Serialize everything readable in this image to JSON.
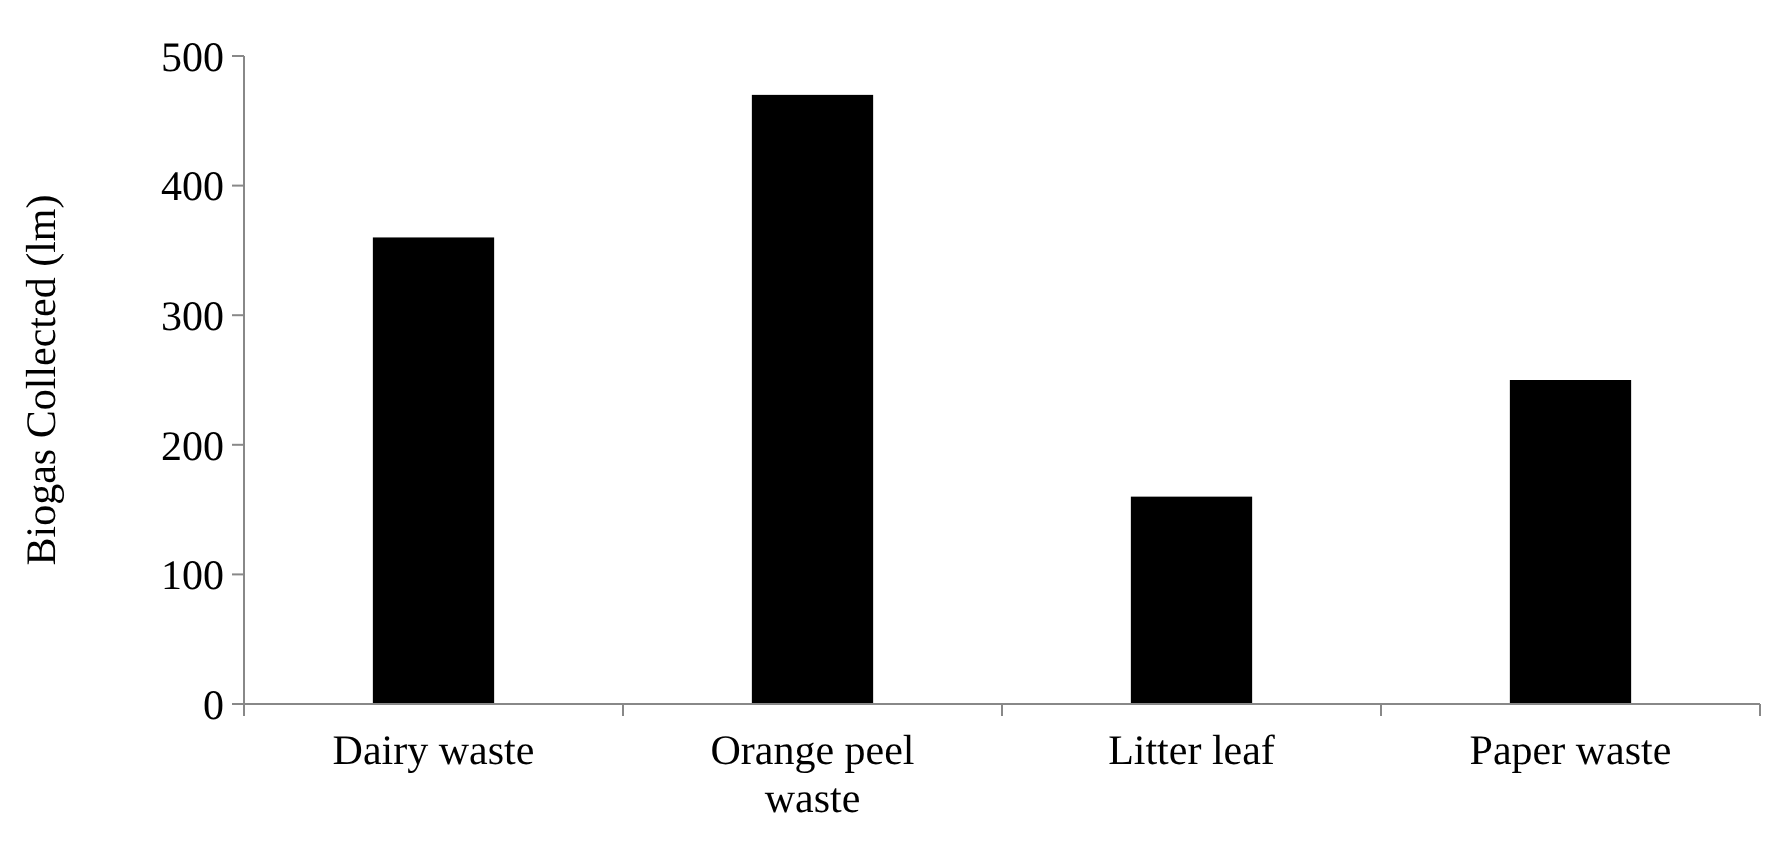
{
  "chart_data": {
    "type": "bar",
    "ylabel": "Biogas Collected (lm)",
    "categories": [
      "Dairy waste",
      "Orange peel waste",
      "Litter leaf",
      "Paper waste"
    ],
    "values": [
      360,
      470,
      160,
      250
    ],
    "color": "#000000",
    "ylim": [
      0,
      500
    ],
    "yticks": [
      0,
      100,
      200,
      300,
      400,
      500
    ],
    "grid": false
  }
}
